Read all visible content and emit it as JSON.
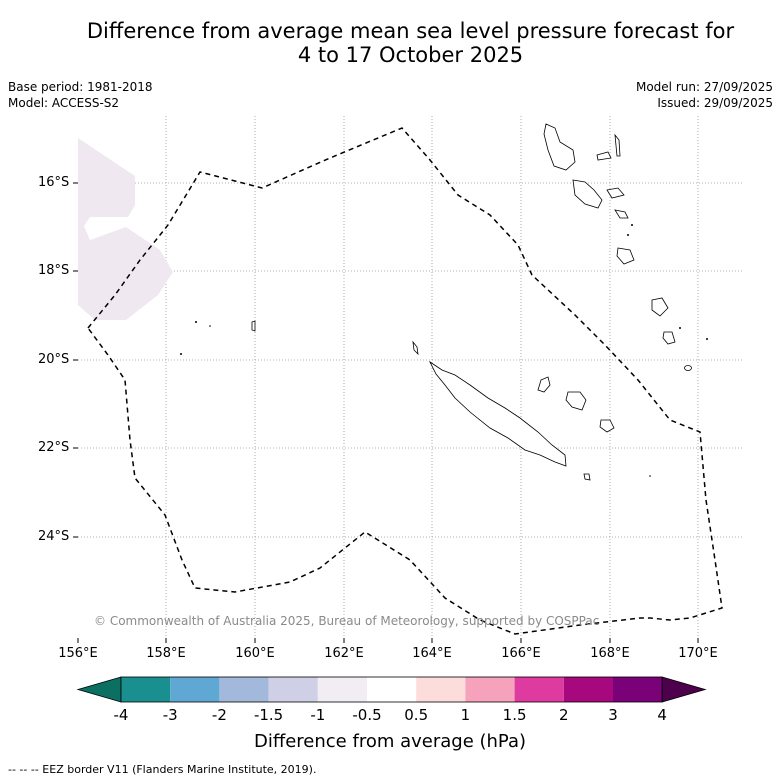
{
  "title_line1": "Difference from average mean sea level pressure forecast for",
  "title_line2": "4 to 17 October 2025",
  "base_period": "Base period: 1981-2018",
  "model": "Model: ACCESS-S2",
  "model_run": "Model run: 27/09/2025",
  "issued": "Issued: 29/09/2025",
  "copyright": "© Commonwealth of Australia 2025, Bureau of Meteorology, supported by COSPPac",
  "latitude_labels": [
    "16°S",
    "18°S",
    "20°S",
    "22°S",
    "24°S"
  ],
  "longitude_labels": [
    "156°E",
    "158°E",
    "160°E",
    "162°E",
    "164°E",
    "166°E",
    "168°E",
    "170°E"
  ],
  "colorbar": {
    "title": "Difference from average (hPa)",
    "tick_labels": [
      "-4",
      "-3",
      "-2",
      "-1.5",
      "-1",
      "-0.5",
      "0.5",
      "1",
      "1.5",
      "2",
      "3",
      "4"
    ],
    "colors": [
      "#1a8f8f",
      "#5fa8d3",
      "#a3b9dc",
      "#cfcfe6",
      "#f1edf2",
      "#ffffff",
      "#fddcdc",
      "#f6a2bd",
      "#de3aa0",
      "#a8087e",
      "#7a0177"
    ],
    "under_color": "#0b6f62",
    "over_color": "#4d004b"
  },
  "footnote": "-- -- -- EEZ border V11 (Flanders Marine Institute, 2019)."
}
